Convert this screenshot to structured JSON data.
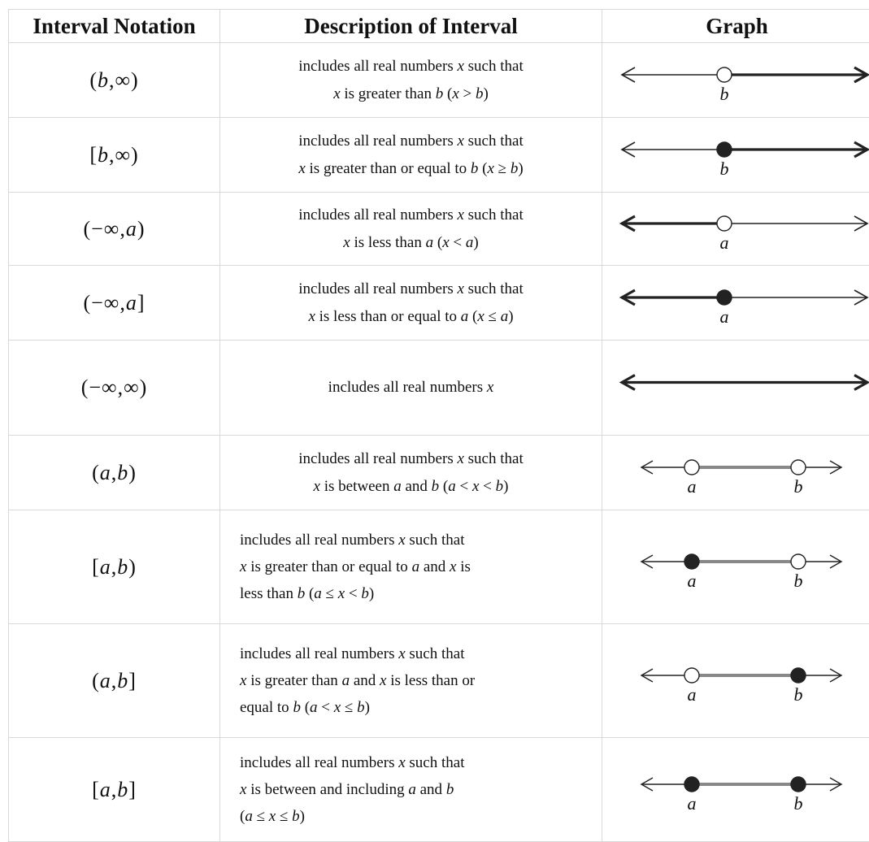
{
  "headers": {
    "notation": "Interval Notation",
    "description": "Description of Interval",
    "graph": "Graph"
  },
  "rows": [
    {
      "notation": "(b,∞)",
      "lines": [
        "includes all real numbers x such that",
        "x is greater than b      (x > b)"
      ],
      "graph": {
        "style": "ray-right",
        "points": [
          {
            "label": "b",
            "filled": false
          }
        ]
      }
    },
    {
      "notation": "[b,∞)",
      "lines": [
        "includes all real numbers x such that",
        "x is greater than or equal to b      (x ≥ b)"
      ],
      "graph": {
        "style": "ray-right",
        "points": [
          {
            "label": "b",
            "filled": true
          }
        ]
      }
    },
    {
      "notation": "(−∞,a)",
      "lines": [
        "includes all real numbers x such that",
        "x is less than a      (x < a)"
      ],
      "graph": {
        "style": "ray-left",
        "points": [
          {
            "label": "a",
            "filled": false
          }
        ]
      }
    },
    {
      "notation": "(−∞,a]",
      "lines": [
        "includes all real numbers x such that",
        "x is less than or equal to a      (x ≤ a)"
      ],
      "graph": {
        "style": "ray-left",
        "points": [
          {
            "label": "a",
            "filled": true
          }
        ]
      }
    },
    {
      "notation": "(−∞,∞)",
      "lines": [
        "includes all real numbers x"
      ],
      "graph": {
        "style": "full",
        "points": []
      }
    },
    {
      "notation": "(a,b)",
      "lines": [
        "includes all real numbers x such that",
        "x is between a and b      (a < x < b)"
      ],
      "graph": {
        "style": "segment",
        "points": [
          {
            "label": "a",
            "filled": false
          },
          {
            "label": "b",
            "filled": false
          }
        ]
      }
    },
    {
      "notation": "[a,b)",
      "lines": [
        "includes all real numbers x such that",
        "x is greater than or equal to a and x is",
        "less than b      (a ≤ x < b)"
      ],
      "graph": {
        "style": "segment",
        "points": [
          {
            "label": "a",
            "filled": true
          },
          {
            "label": "b",
            "filled": false
          }
        ]
      }
    },
    {
      "notation": "(a,b]",
      "lines": [
        "includes all real numbers x such that",
        "x is greater than a and x is less than or",
        "equal to b      (a < x ≤ b)"
      ],
      "graph": {
        "style": "segment",
        "points": [
          {
            "label": "a",
            "filled": false
          },
          {
            "label": "b",
            "filled": true
          }
        ]
      }
    },
    {
      "notation": "[a,b]",
      "lines": [
        "includes all real numbers x such that",
        "x is between and including a and b",
        "(a ≤ x ≤ b)"
      ],
      "graph": {
        "style": "segment",
        "points": [
          {
            "label": "a",
            "filled": true
          },
          {
            "label": "b",
            "filled": true
          }
        ]
      }
    }
  ]
}
